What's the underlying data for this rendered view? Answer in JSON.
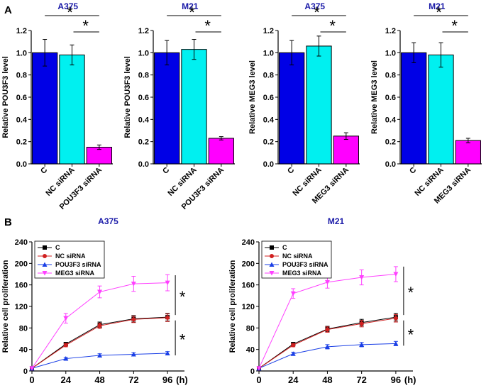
{
  "panels": [
    {
      "letter": "A"
    },
    {
      "letter": "B"
    }
  ],
  "colors": {
    "C": "#0000e6",
    "NC siRNA": "#00f0f0",
    "siRNA": "#ff00ff",
    "line_C": "#000000",
    "line_NC": "#d02020",
    "line_POU": "#1a3fe6",
    "line_MEG": "#ff40ff"
  },
  "chart_data": [
    {
      "type": "bar",
      "title": "A375",
      "ylabel": "Relative POU3F3 level",
      "categories": [
        "C",
        "NC siRNA",
        "POU3F3 siRNA"
      ],
      "values": [
        1.0,
        0.98,
        0.15
      ],
      "errors": [
        0.12,
        0.09,
        0.02
      ],
      "ylim": [
        0,
        1.2
      ],
      "yticks": [
        "0.0",
        "0.2",
        "0.4",
        "0.6",
        "0.8",
        "1.0",
        "1.2"
      ],
      "significance": [
        "*",
        "*"
      ]
    },
    {
      "type": "bar",
      "title": "M21",
      "ylabel": "Relative POU3F3 level",
      "categories": [
        "C",
        "NC siRNA",
        "POU3F3 siRNA"
      ],
      "values": [
        1.0,
        1.03,
        0.23
      ],
      "errors": [
        0.11,
        0.09,
        0.015
      ],
      "ylim": [
        0,
        1.2
      ],
      "yticks": [
        "0.0",
        "0.2",
        "0.4",
        "0.6",
        "0.8",
        "1.0",
        "1.2"
      ],
      "significance": [
        "*",
        "*"
      ]
    },
    {
      "type": "bar",
      "title": "A375",
      "ylabel": "Relative MEG3 level",
      "categories": [
        "C",
        "NC siRNA",
        "MEG3 siRNA"
      ],
      "values": [
        1.0,
        1.06,
        0.25
      ],
      "errors": [
        0.11,
        0.09,
        0.03
      ],
      "ylim": [
        0,
        1.2
      ],
      "yticks": [
        "0.0",
        "0.2",
        "0.4",
        "0.6",
        "0.8",
        "1.0",
        "1.2"
      ],
      "significance": [
        "*",
        "*"
      ]
    },
    {
      "type": "bar",
      "title": "M21",
      "ylabel": "Relative MEG3 level",
      "categories": [
        "C",
        "NC siRNA",
        "MEG3 siRNA"
      ],
      "values": [
        1.0,
        0.98,
        0.21
      ],
      "errors": [
        0.09,
        0.11,
        0.02
      ],
      "ylim": [
        0,
        1.2
      ],
      "yticks": [
        "0.0",
        "0.2",
        "0.4",
        "0.6",
        "0.8",
        "1.0",
        "1.2"
      ],
      "significance": [
        "*",
        "*"
      ]
    },
    {
      "type": "line",
      "title": "A375",
      "ylabel": "Relative cell proliferation",
      "x": [
        0,
        24,
        48,
        72,
        96
      ],
      "xunit": "(h)",
      "xticks": [
        "0",
        "24",
        "48",
        "72",
        "96"
      ],
      "ylim": [
        0,
        240
      ],
      "yticks": [
        "0",
        "40",
        "80",
        "120",
        "160",
        "200",
        "240"
      ],
      "series": [
        {
          "name": "C",
          "values": [
            5,
            50,
            86,
            97,
            100
          ],
          "errors": [
            0,
            3,
            5,
            6,
            7
          ]
        },
        {
          "name": "NC siRNA",
          "values": [
            5,
            48,
            84,
            96,
            99
          ],
          "errors": [
            0,
            3,
            5,
            6,
            7
          ]
        },
        {
          "name": "POU3F3 siRNA",
          "values": [
            5,
            23,
            29,
            31,
            33
          ],
          "errors": [
            0,
            2,
            3,
            3,
            3
          ]
        },
        {
          "name": "MEG3 siRNA",
          "values": [
            5,
            98,
            147,
            162,
            164
          ],
          "errors": [
            0,
            9,
            11,
            14,
            15
          ]
        }
      ],
      "significance": [
        "*",
        "*"
      ]
    },
    {
      "type": "line",
      "title": "M21",
      "ylabel": "Relative cell proliferation",
      "x": [
        0,
        24,
        48,
        72,
        96
      ],
      "xunit": "(h)",
      "xticks": [
        "0",
        "24",
        "48",
        "72",
        "96"
      ],
      "ylim": [
        0,
        240
      ],
      "yticks": [
        "0",
        "40",
        "80",
        "120",
        "160",
        "200",
        "240"
      ],
      "series": [
        {
          "name": "C",
          "values": [
            5,
            50,
            78,
            90,
            100
          ],
          "errors": [
            0,
            3,
            5,
            6,
            7
          ]
        },
        {
          "name": "NC siRNA",
          "values": [
            5,
            48,
            77,
            88,
            98
          ],
          "errors": [
            0,
            3,
            5,
            6,
            7
          ]
        },
        {
          "name": "POU3F3 siRNA",
          "values": [
            5,
            32,
            45,
            49,
            51
          ],
          "errors": [
            0,
            3,
            4,
            4,
            4
          ]
        },
        {
          "name": "MEG3 siRNA",
          "values": [
            5,
            144,
            165,
            174,
            180
          ],
          "errors": [
            0,
            9,
            11,
            14,
            14
          ]
        }
      ],
      "significance": [
        "*",
        "*"
      ]
    }
  ]
}
